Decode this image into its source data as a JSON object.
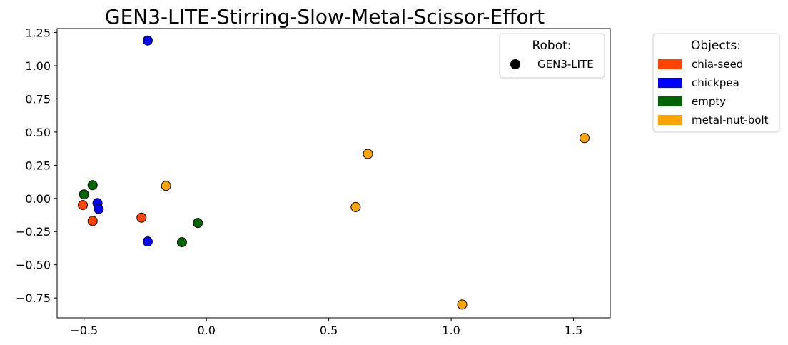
{
  "chart_data": {
    "type": "scatter",
    "title": "GEN3-LITE-Stirring-Slow-Metal-Scissor-Effort",
    "xlabel": "",
    "ylabel": "",
    "xlim": [
      -0.61,
      1.65
    ],
    "ylim": [
      -0.9,
      1.28
    ],
    "x_ticks": [
      -0.5,
      0.0,
      0.5,
      1.0,
      1.5
    ],
    "x_tick_labels": [
      "−0.5",
      "0.0",
      "0.5",
      "1.0",
      "1.5"
    ],
    "y_ticks": [
      1.25,
      1.0,
      0.75,
      0.5,
      0.25,
      0.0,
      -0.25,
      -0.5,
      -0.75
    ],
    "y_tick_labels": [
      "1.25",
      "1.00",
      "0.75",
      "0.50",
      "0.25",
      "0.00",
      "−0.25",
      "−0.50",
      "−0.75"
    ],
    "grid": false,
    "robot_legend": {
      "title": "Robot:",
      "placement": "top-right",
      "entries": [
        {
          "label": "GEN3-LITE",
          "marker": "circle",
          "color": "#000000"
        }
      ]
    },
    "objects_legend": {
      "title": "Objects:",
      "placement": "outside-right",
      "entries": [
        {
          "label": "chia-seed",
          "color": "#ff4500"
        },
        {
          "label": "chickpea",
          "color": "#0000ff"
        },
        {
          "label": "empty",
          "color": "#006400"
        },
        {
          "label": "metal-nut-bolt",
          "color": "#ffa500"
        }
      ]
    },
    "series": [
      {
        "object": "chia-seed",
        "color": "#ff4500",
        "points": [
          [
            -0.505,
            -0.05
          ],
          [
            -0.465,
            -0.17
          ],
          [
            -0.265,
            -0.145
          ]
        ]
      },
      {
        "object": "chickpea",
        "color": "#0000ff",
        "points": [
          [
            -0.24,
            1.19
          ],
          [
            -0.445,
            -0.035
          ],
          [
            -0.44,
            -0.08
          ],
          [
            -0.24,
            -0.325
          ]
        ]
      },
      {
        "object": "empty",
        "color": "#006400",
        "points": [
          [
            -0.5,
            0.03
          ],
          [
            -0.465,
            0.1
          ],
          [
            -0.035,
            -0.185
          ],
          [
            -0.1,
            -0.33
          ]
        ]
      },
      {
        "object": "metal-nut-bolt",
        "color": "#ffa500",
        "points": [
          [
            -0.165,
            0.095
          ],
          [
            0.66,
            0.335
          ],
          [
            0.61,
            -0.065
          ],
          [
            1.545,
            0.455
          ],
          [
            1.045,
            -0.8
          ]
        ]
      }
    ]
  }
}
